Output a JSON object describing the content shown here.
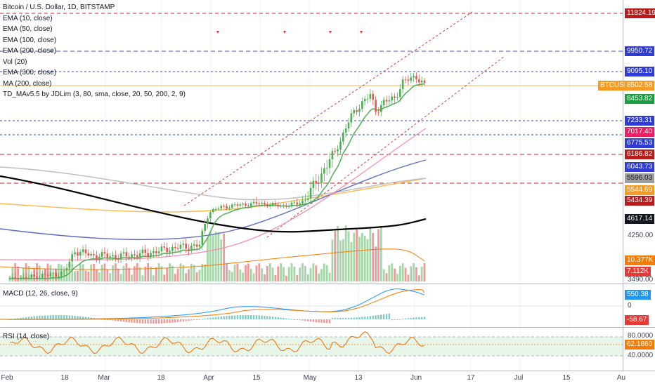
{
  "legend": {
    "title": "Bitcoin / U.S. Dollar, 1D, BITSTAMP",
    "studies": [
      "EMA (10, close)",
      "EMA (50, close)",
      "EMA (100, close)",
      "EMA (200, close)",
      "Vol (20)",
      "EMA (300, close)",
      "MA (200, close)",
      "TD_MAv5.5 by JDLim (3, 80, sma, close, 20, 50, 200, 2, 9)"
    ]
  },
  "symbol_tag": "BTCUSD",
  "price_labels": [
    {
      "text": "11824.19",
      "color": "#b71c1c"
    },
    {
      "text": "9950.72",
      "color": "#2f3bd1"
    },
    {
      "text": "9095.10",
      "color": "#2f3bd1"
    },
    {
      "text": "8502.58",
      "color": "#f59a23"
    },
    {
      "text": "8453.82",
      "color": "#1b9e3e"
    },
    {
      "text": "7233.31",
      "color": "#2f3bd1"
    },
    {
      "text": "7017.40",
      "color": "#e91e63"
    },
    {
      "text": "6775.53",
      "color": "#2f3bd1"
    },
    {
      "text": "6186.82",
      "color": "#b71c1c"
    },
    {
      "text": "6043.73",
      "color": "#2f3bd1"
    },
    {
      "text": "5596.03",
      "color": "#9e9e9e"
    },
    {
      "text": "5544.69",
      "color": "#f59a23"
    },
    {
      "text": "5434.39",
      "color": "#b71c1c"
    },
    {
      "text": "4617.14",
      "color": "#131722"
    },
    {
      "text": "4250.00",
      "color": ""
    },
    {
      "text": "10.377K",
      "color": "#f57c00"
    },
    {
      "text": "7.112K",
      "color": "#e53935"
    },
    {
      "text": "3490.00",
      "color": ""
    }
  ],
  "macd": {
    "label": "MACD (12, 26, close, 9)",
    "value": "550.38",
    "value_color": "#2196f3",
    "zero": "0",
    "low": "-58.67",
    "low_color": "#e53935"
  },
  "rsi": {
    "label": "RSI (14, close)",
    "top": "80.0000",
    "value": "62.1860",
    "value_color": "#f57c00",
    "bottom": "40.0000"
  },
  "x_axis": [
    "Feb",
    "18",
    "Mar",
    "18",
    "Apr",
    "15",
    "May",
    "13",
    "Jun",
    "17",
    "Jul",
    "15",
    "Au"
  ],
  "colors": {
    "up": "#26a69a",
    "up_candle": "#4caf50",
    "down": "#ef5350",
    "ema10": "#4caf50",
    "ema50": "#f48fb1",
    "ema100": "#5c6bc0",
    "ema200": "#ffb74d",
    "ema300": "#bdbdbd",
    "ma200": "#000000"
  },
  "chart_data": [
    {
      "type": "line",
      "title": "Bitcoin / U.S. Dollar, 1D, BITSTAMP",
      "y_axis_labels": [
        11824.19,
        9950.72,
        9095.1,
        8502.58,
        8453.82,
        7233.31,
        7017.4,
        6775.53,
        6186.82,
        6043.73,
        5596.03,
        5544.69,
        5434.39,
        4617.14,
        4250.0,
        3490.0
      ],
      "series": [
        {
          "name": "EMA (10, close)",
          "last": 8453.82
        },
        {
          "name": "EMA (50, close)",
          "last": 7017.4
        },
        {
          "name": "EMA (100, close)",
          "last": 6043.73
        },
        {
          "name": "EMA (200, close)",
          "last": 5544.69
        },
        {
          "name": "EMA (300, close)",
          "last": 5596.03
        },
        {
          "name": "MA (200, close)",
          "last": 4617.14
        }
      ],
      "last_price": 8502.58,
      "horizontal_levels": [
        11824.19,
        9950.72,
        9095.1,
        7233.31,
        6775.53,
        6186.82,
        5434.39
      ]
    },
    {
      "type": "bar",
      "title": "Vol (20)",
      "last": [
        "10.377K",
        "7.112K"
      ]
    },
    {
      "type": "line",
      "title": "MACD (12, 26, close, 9)",
      "last": 550.38,
      "min_label": -58.67
    },
    {
      "type": "line",
      "title": "RSI (14, close)",
      "last": 62.186,
      "levels": [
        80,
        40
      ]
    }
  ]
}
